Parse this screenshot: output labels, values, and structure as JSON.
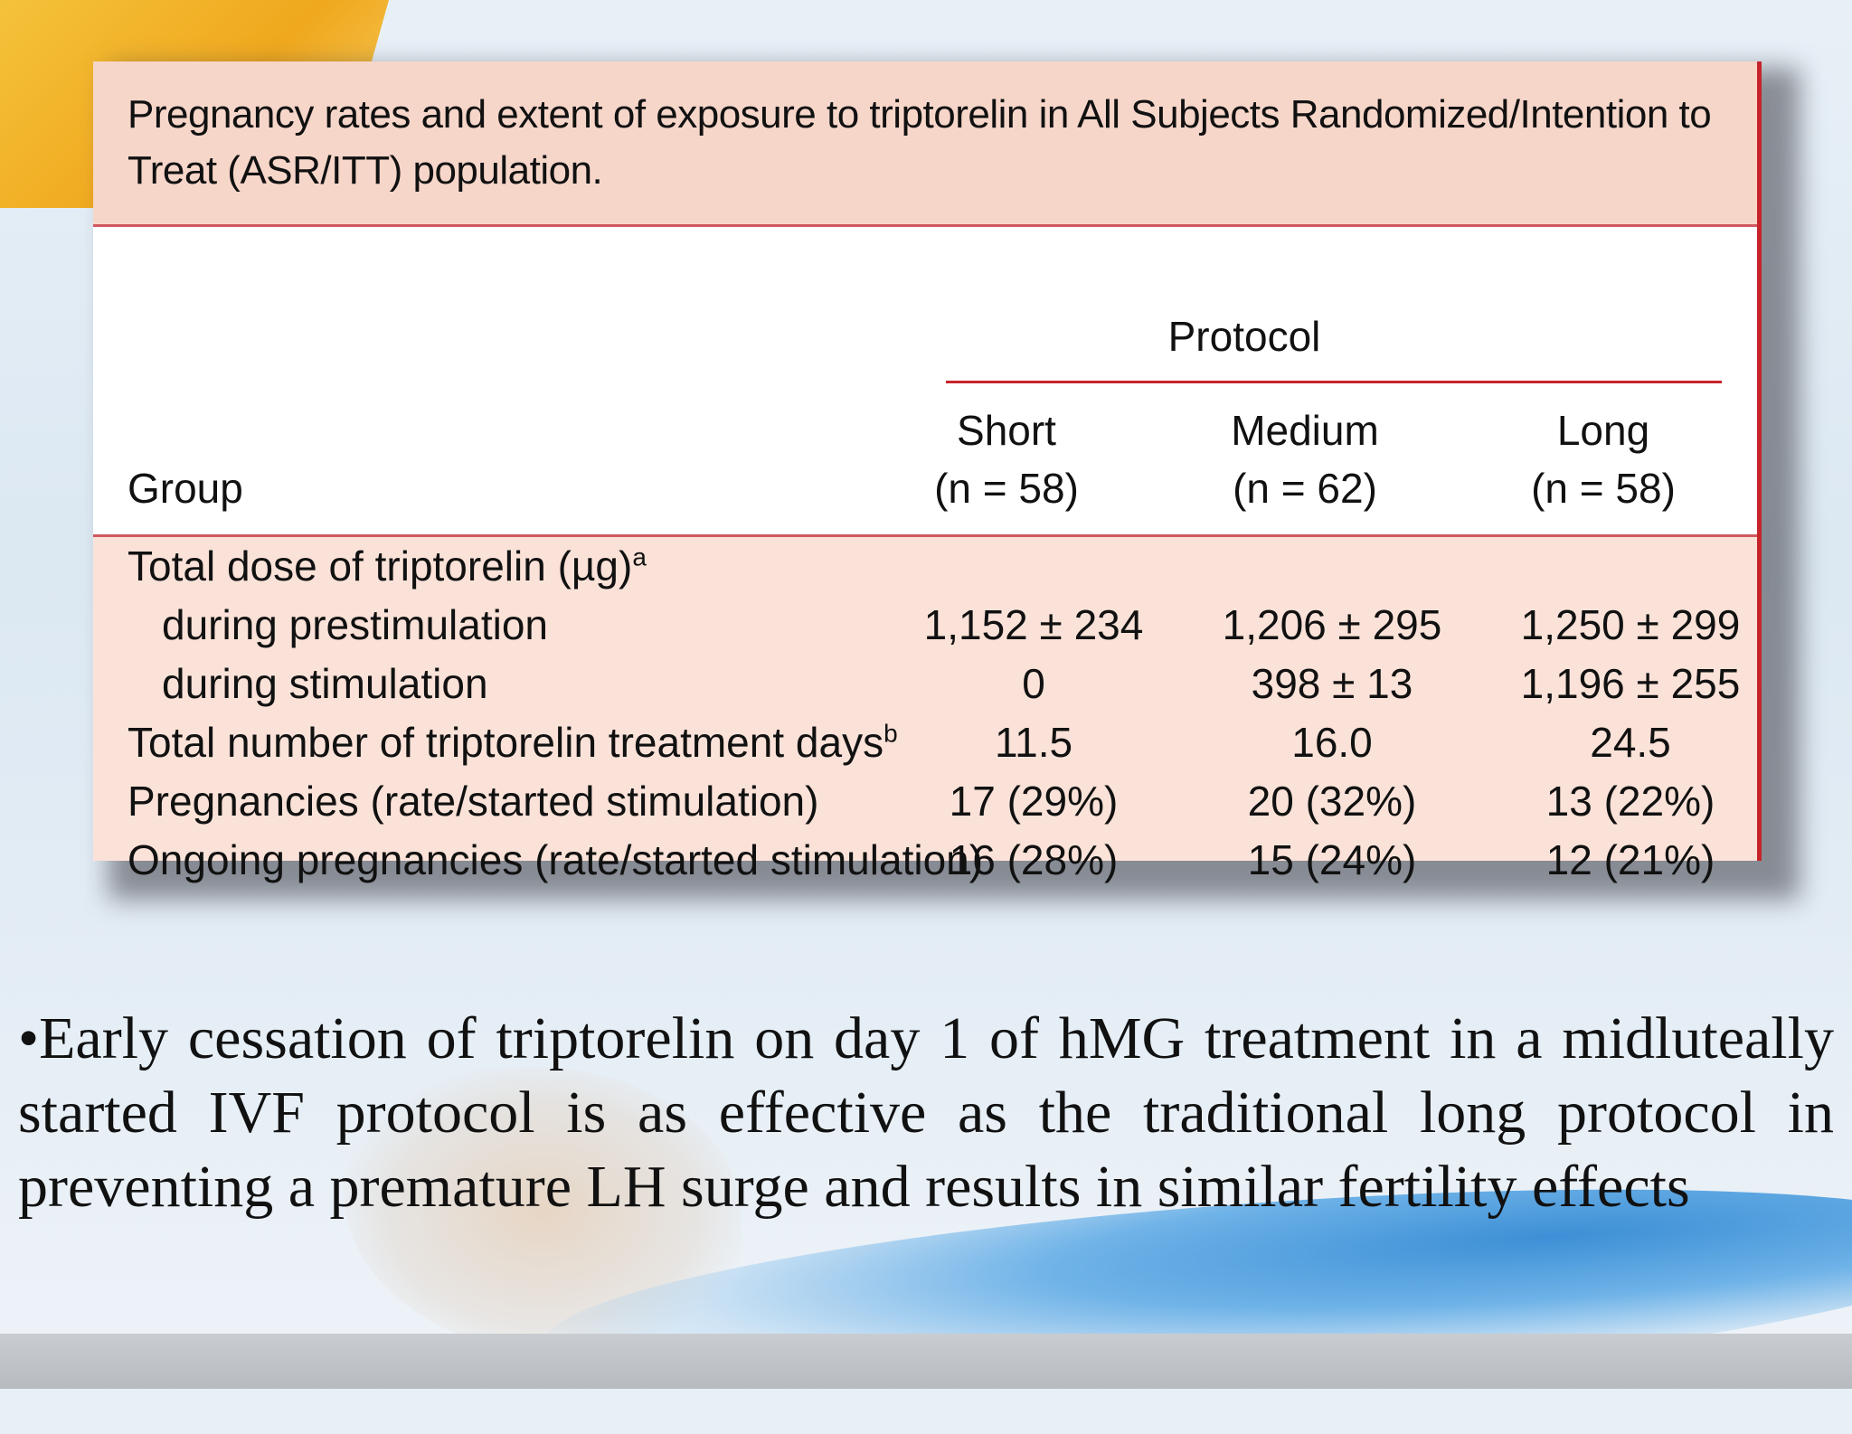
{
  "table": {
    "title": "Pregnancy rates and extent of exposure to triptorelin in All Subjects Randomized/Intention to Treat (ASR/ITT) population.",
    "protocol_label": "Protocol",
    "group_label": "Group",
    "columns": [
      {
        "name": "Short",
        "n": "(n = 58)"
      },
      {
        "name": "Medium",
        "n": "(n = 62)"
      },
      {
        "name": "Long",
        "n": "(n = 58)"
      }
    ],
    "rows": [
      {
        "label": "Total dose of triptorelin (µg)",
        "sup": "a",
        "indent": false,
        "values": [
          "",
          "",
          ""
        ]
      },
      {
        "label": "during prestimulation",
        "sup": "",
        "indent": true,
        "values": [
          "1,152 ± 234",
          "1,206 ± 295",
          "1,250 ± 299"
        ]
      },
      {
        "label": "during stimulation",
        "sup": "",
        "indent": true,
        "values": [
          "0",
          "398 ± 13",
          "1,196 ± 255"
        ]
      },
      {
        "label": "Total number of triptorelin treatment days",
        "sup": "b",
        "indent": false,
        "values": [
          "11.5",
          "16.0",
          "24.5"
        ]
      },
      {
        "label": "Pregnancies (rate/started stimulation)",
        "sup": "",
        "indent": false,
        "values": [
          "17 (29%)",
          "20 (32%)",
          "13 (22%)"
        ]
      },
      {
        "label": "Ongoing pregnancies (rate/started stimulation)",
        "sup": "",
        "indent": false,
        "values": [
          "16 (28%)",
          "15 (24%)",
          "12 (21%)"
        ]
      }
    ]
  },
  "bullet": {
    "text": "•Early cessation of triptorelin on day 1 of hMG treatment in a midluteally started IVF protocol is as effective as the traditional long protocol in preventing a premature LH surge and results in similar fertility effects"
  },
  "colors": {
    "title_bg": "#f7d6ca",
    "body_bg": "#fbe2d8",
    "rule": "#c6242a",
    "accent_yellow": "#f4c23a",
    "accent_blue": "#3d8fd6"
  }
}
